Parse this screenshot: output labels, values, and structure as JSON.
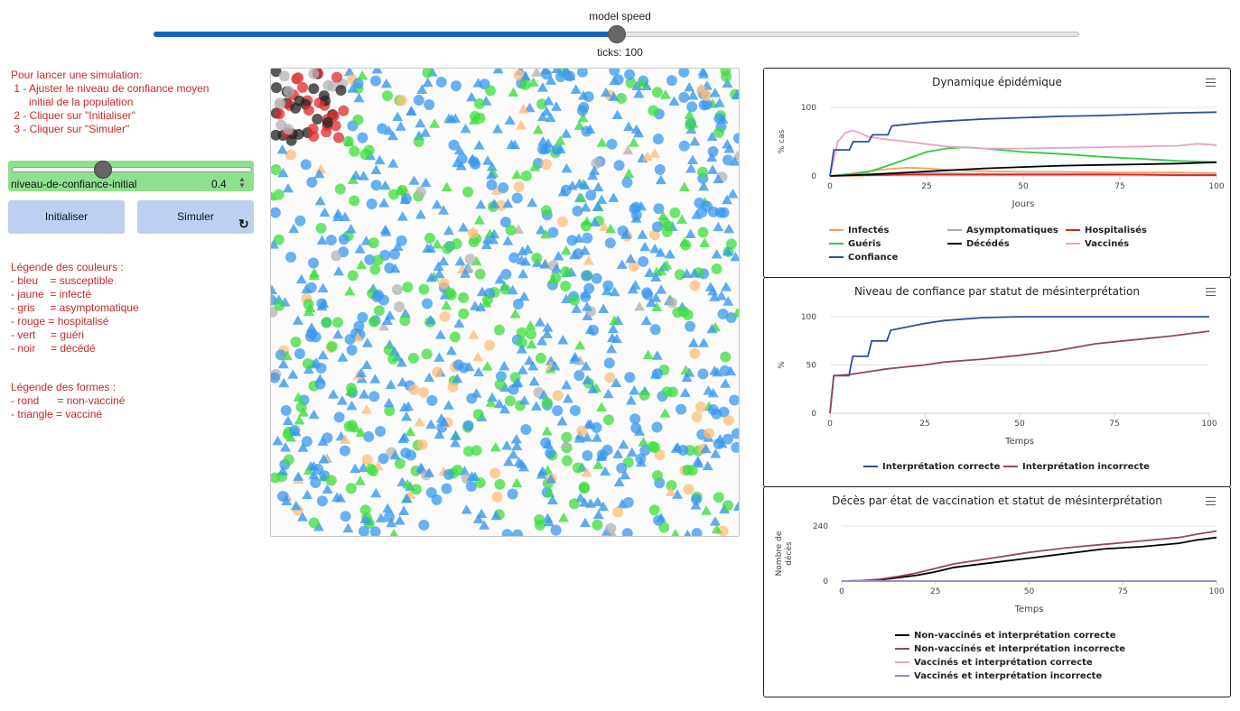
{
  "speed": {
    "label": "model speed",
    "ticks_text": "ticks: 100",
    "value_fraction": 0.5
  },
  "instructions": "Pour lancer une simulation:\n 1 - Ajuster le niveau de confiance moyen\n      initial de la population\n 2 - Cliquer sur \"Initialiser\"\n 3 - Cliquer sur \"Simuler\"",
  "confidence_slider": {
    "label": "niveau-de-confiance-initial",
    "value": "0.4",
    "value_fraction": 0.4
  },
  "buttons": {
    "init": "Initialiser",
    "simulate": "Simuler"
  },
  "legend_colors": "Légende des couleurs :\n- bleu    = susceptible\n- jaune  = infecté\n- gris     = asymptomatique\n- rouge = hospitalisé\n- vert     = guéri\n- noir     = décédé",
  "legend_shapes": "Légende des formes :\n- rond      = non-vacciné\n- triangle = vacciné",
  "agent_colors": {
    "susceptible": "#3a98ef",
    "infected": "#ffbe78",
    "asymptomatic": "#b4b4b4",
    "hospitalized": "#e02a2a",
    "recovered": "#3edd3e",
    "dead": "#222222"
  },
  "chart_data": [
    {
      "type": "line",
      "title": "Dynamique épidémique",
      "xlabel": "Jours",
      "ylabel": "% cas",
      "xlim": [
        0,
        100
      ],
      "ylim": [
        0,
        100
      ],
      "xticks": [
        "0",
        "25",
        "50",
        "75",
        "100"
      ],
      "yticks": [
        "0",
        "100"
      ],
      "series": [
        {
          "name": "Infectés",
          "color": "#f4a261",
          "x": [
            0,
            5,
            10,
            15,
            20,
            25,
            30,
            40,
            50,
            60,
            70,
            80,
            90,
            100
          ],
          "y": [
            0,
            3,
            7,
            10,
            12,
            11,
            9,
            7,
            6,
            6,
            5,
            5,
            5,
            4
          ]
        },
        {
          "name": "Asymptomatiques",
          "color": "#aaaaaa",
          "x": [
            0,
            10,
            20,
            30,
            40,
            50,
            60,
            70,
            80,
            90,
            100
          ],
          "y": [
            0,
            3,
            4,
            4,
            3,
            3,
            3,
            3,
            2,
            2,
            2
          ]
        },
        {
          "name": "Hospitalisés",
          "color": "#d62828",
          "x": [
            0,
            10,
            20,
            30,
            40,
            50,
            60,
            70,
            80,
            90,
            100
          ],
          "y": [
            0,
            1,
            2,
            2,
            2,
            2,
            2,
            2,
            2,
            1,
            1
          ]
        },
        {
          "name": "Guéris",
          "color": "#2ecc40",
          "x": [
            0,
            5,
            10,
            15,
            20,
            25,
            30,
            35,
            40,
            50,
            60,
            70,
            80,
            90,
            100
          ],
          "y": [
            0,
            2,
            6,
            15,
            25,
            35,
            40,
            42,
            40,
            35,
            32,
            28,
            25,
            22,
            20
          ]
        },
        {
          "name": "Décédés",
          "color": "#000000",
          "x": [
            0,
            10,
            20,
            30,
            40,
            50,
            60,
            70,
            80,
            90,
            100
          ],
          "y": [
            0,
            2,
            5,
            8,
            11,
            13,
            15,
            16,
            17,
            18,
            20
          ]
        },
        {
          "name": "Vaccinés",
          "color": "#e7a3c6",
          "x": [
            0,
            2,
            4,
            6,
            8,
            10,
            15,
            20,
            30,
            40,
            50,
            60,
            70,
            80,
            90,
            95,
            100
          ],
          "y": [
            0,
            50,
            63,
            66,
            62,
            57,
            53,
            50,
            43,
            40,
            40,
            41,
            42,
            43,
            44,
            47,
            45
          ]
        },
        {
          "name": "Confiance",
          "color": "#2c4f9e",
          "x": [
            0,
            1,
            5,
            6,
            10,
            11,
            15,
            16,
            25,
            30,
            40,
            50,
            60,
            70,
            80,
            90,
            100
          ],
          "y": [
            0,
            38,
            38,
            50,
            50,
            60,
            60,
            73,
            78,
            80,
            83,
            85,
            87,
            88,
            90,
            92,
            93
          ]
        }
      ],
      "legend": [
        [
          "Infectés",
          "Asymptomatiques",
          "Hospitalisés"
        ],
        [
          "Guéris",
          "Décédés",
          "Vaccinés"
        ],
        [
          "Confiance"
        ]
      ]
    },
    {
      "type": "line",
      "title": "Niveau de confiance par statut de mésinterprétation",
      "xlabel": "Temps",
      "ylabel": "%",
      "xlim": [
        0,
        100
      ],
      "ylim": [
        0,
        100
      ],
      "xticks": [
        "0",
        "25",
        "50",
        "75",
        "100"
      ],
      "yticks": [
        "0",
        "50",
        "100"
      ],
      "series": [
        {
          "name": "Interprétation correcte",
          "color": "#2c4f9e",
          "x": [
            0,
            1,
            5,
            6,
            10,
            11,
            15,
            16,
            25,
            30,
            40,
            50,
            60,
            80,
            100
          ],
          "y": [
            0,
            39,
            39,
            59,
            59,
            75,
            75,
            86,
            93,
            96,
            99,
            100,
            100,
            100,
            100
          ]
        },
        {
          "name": "Interprétation incorrecte",
          "color": "#8e4a5d",
          "x": [
            0,
            1,
            5,
            10,
            15,
            20,
            25,
            30,
            40,
            50,
            60,
            70,
            80,
            90,
            100
          ],
          "y": [
            0,
            39,
            40,
            43,
            46,
            48,
            50,
            53,
            56,
            60,
            65,
            72,
            76,
            80,
            85
          ]
        }
      ],
      "legend": [
        [
          "Interprétation correcte",
          "Interprétation incorrecte"
        ]
      ]
    },
    {
      "type": "line",
      "title": "Décès par état de vaccination et statut de mésinterprétation",
      "xlabel": "Temps",
      "ylabel": "Nombre de décès",
      "xlim": [
        0,
        100
      ],
      "ylim": [
        0,
        240
      ],
      "xticks": [
        "0",
        "25",
        "50",
        "75",
        "100"
      ],
      "yticks": [
        "0",
        "240"
      ],
      "series": [
        {
          "name": "Non-vaccinés et interprétation correcte",
          "color": "#000000",
          "x": [
            0,
            5,
            10,
            15,
            20,
            25,
            30,
            40,
            50,
            60,
            70,
            80,
            90,
            95,
            100
          ],
          "y": [
            0,
            1,
            5,
            15,
            25,
            40,
            60,
            80,
            100,
            120,
            140,
            150,
            165,
            180,
            190
          ]
        },
        {
          "name": "Non-vaccinés et interprétation incorrecte",
          "color": "#8e4a5d",
          "x": [
            0,
            5,
            10,
            15,
            20,
            25,
            30,
            40,
            50,
            60,
            70,
            80,
            90,
            95,
            100
          ],
          "y": [
            0,
            2,
            8,
            20,
            35,
            55,
            75,
            100,
            125,
            145,
            160,
            175,
            190,
            205,
            218
          ]
        },
        {
          "name": "Vaccinés et interprétation correcte",
          "color": "#e7a3c6",
          "x": [
            0,
            100
          ],
          "y": [
            0,
            0
          ]
        },
        {
          "name": "Vaccinés et interprétation incorrecte",
          "color": "#9b86c8",
          "x": [
            0,
            100
          ],
          "y": [
            0,
            0
          ]
        }
      ],
      "legend": [
        [
          "Non-vaccinés et interprétation correcte"
        ],
        [
          "Non-vaccinés et interprétation incorrecte"
        ],
        [
          "Vaccinés et interprétation correcte"
        ],
        [
          "Vaccinés et interprétation incorrecte"
        ]
      ]
    }
  ]
}
